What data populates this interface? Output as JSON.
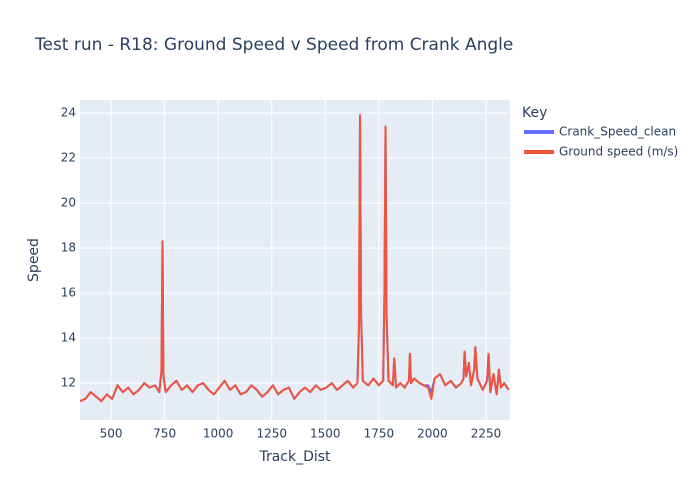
{
  "chart_data": {
    "type": "line",
    "title": "Test run - R18: Ground Speed v Speed from Crank Angle",
    "x_label": "Track_Dist",
    "y_label": "Speed",
    "legend_title": "Key",
    "x": [
      355,
      380,
      405,
      430,
      455,
      480,
      505,
      530,
      555,
      580,
      605,
      630,
      655,
      680,
      705,
      725,
      735,
      740,
      745,
      755,
      780,
      805,
      830,
      855,
      880,
      905,
      930,
      955,
      980,
      1005,
      1030,
      1055,
      1080,
      1105,
      1130,
      1155,
      1180,
      1205,
      1230,
      1255,
      1280,
      1305,
      1330,
      1355,
      1380,
      1405,
      1430,
      1455,
      1480,
      1505,
      1530,
      1555,
      1580,
      1605,
      1630,
      1650,
      1657,
      1662,
      1667,
      1675,
      1700,
      1725,
      1750,
      1770,
      1776,
      1781,
      1786,
      1795,
      1815,
      1822,
      1830,
      1850,
      1870,
      1890,
      1895,
      1900,
      1915,
      1940,
      1960,
      1980,
      1995,
      2010,
      2035,
      2060,
      2085,
      2110,
      2135,
      2145,
      2150,
      2158,
      2170,
      2180,
      2195,
      2200,
      2210,
      2235,
      2255,
      2262,
      2270,
      2285,
      2300,
      2310,
      2320,
      2335,
      2355
    ],
    "series": [
      {
        "name": "Crank_Speed_clean",
        "color": "#636efa",
        "values": [
          11.2,
          11.3,
          11.6,
          11.4,
          11.2,
          11.5,
          11.3,
          11.9,
          11.6,
          11.8,
          11.5,
          11.7,
          12.0,
          11.8,
          11.9,
          11.6,
          12.5,
          18.3,
          12.3,
          11.6,
          11.9,
          12.1,
          11.7,
          11.9,
          11.6,
          11.9,
          12.0,
          11.7,
          11.5,
          11.8,
          12.1,
          11.7,
          11.9,
          11.5,
          11.6,
          11.9,
          11.7,
          11.4,
          11.6,
          11.9,
          11.5,
          11.7,
          11.8,
          11.3,
          11.6,
          11.8,
          11.6,
          11.9,
          11.7,
          11.8,
          12.0,
          11.7,
          11.9,
          12.1,
          11.8,
          12.0,
          14.5,
          23.9,
          15.0,
          12.1,
          11.9,
          12.2,
          11.9,
          12.1,
          16.0,
          23.4,
          15.0,
          12.1,
          11.9,
          13.1,
          11.8,
          12.0,
          11.8,
          12.1,
          13.3,
          12.0,
          12.2,
          12.0,
          11.9,
          11.9,
          11.6,
          12.2,
          12.4,
          11.9,
          12.1,
          11.8,
          12.0,
          12.2,
          13.4,
          12.3,
          12.9,
          11.9,
          12.6,
          13.6,
          12.2,
          11.7,
          12.1,
          13.3,
          11.6,
          12.4,
          11.5,
          12.6,
          11.8,
          12.0,
          11.7
        ]
      },
      {
        "name": "Ground speed (m/s)",
        "color": "#ef553b",
        "values": [
          11.2,
          11.3,
          11.6,
          11.4,
          11.2,
          11.5,
          11.3,
          11.9,
          11.6,
          11.8,
          11.5,
          11.7,
          12.0,
          11.8,
          11.9,
          11.6,
          12.5,
          18.3,
          12.3,
          11.6,
          11.9,
          12.1,
          11.7,
          11.9,
          11.6,
          11.9,
          12.0,
          11.7,
          11.5,
          11.8,
          12.1,
          11.7,
          11.9,
          11.5,
          11.6,
          11.9,
          11.7,
          11.4,
          11.6,
          11.9,
          11.5,
          11.7,
          11.8,
          11.3,
          11.6,
          11.8,
          11.6,
          11.9,
          11.7,
          11.8,
          12.0,
          11.7,
          11.9,
          12.1,
          11.8,
          12.0,
          14.5,
          23.9,
          15.0,
          12.1,
          11.9,
          12.2,
          11.9,
          12.1,
          16.0,
          23.4,
          15.0,
          12.1,
          11.9,
          13.1,
          11.8,
          12.0,
          11.8,
          12.1,
          13.3,
          12.0,
          12.2,
          12.0,
          11.9,
          11.8,
          11.3,
          12.2,
          12.4,
          11.9,
          12.1,
          11.8,
          12.0,
          12.2,
          13.4,
          12.3,
          12.9,
          11.9,
          12.6,
          13.6,
          12.2,
          11.7,
          12.1,
          13.3,
          11.6,
          12.4,
          11.5,
          12.6,
          11.8,
          12.0,
          11.7
        ]
      }
    ],
    "xlim": [
      355,
      2362
    ],
    "xticks": [
      500,
      750,
      1000,
      1250,
      1500,
      1750,
      2000,
      2250
    ],
    "ylim": [
      10.36,
      24.58
    ],
    "yticks": [
      12,
      14,
      16,
      18,
      20,
      22,
      24
    ],
    "grid": true,
    "legend": "right"
  }
}
